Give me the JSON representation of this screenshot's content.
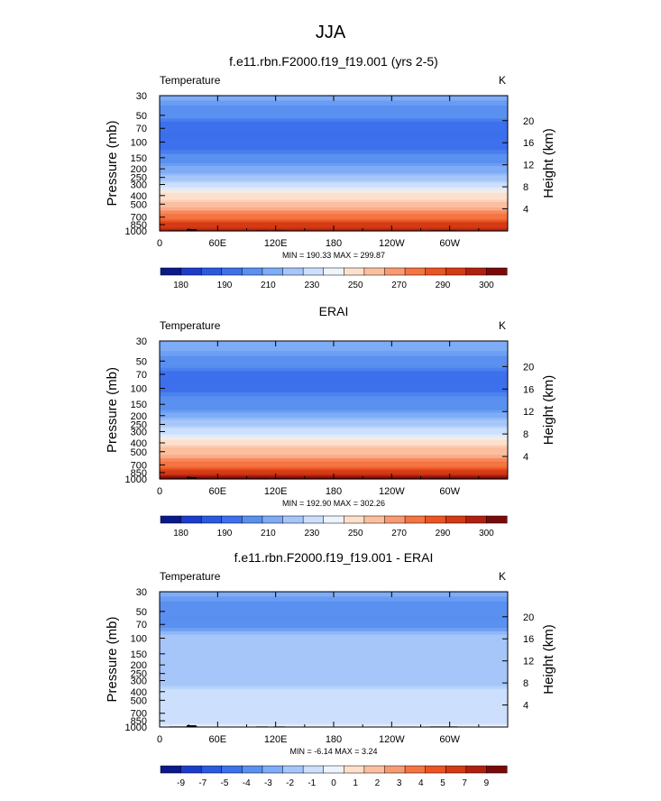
{
  "figure_title": "JJA",
  "chart_data": [
    {
      "type": "heatmap",
      "title": "f.e11.rbn.F2000.f19_f19.001 (yrs 2-5)",
      "variable_label": "Temperature",
      "units_label": "K",
      "ylabel": "Pressure (mb)",
      "ylabel_right": "Height (km)",
      "x_ticks": [
        "0",
        "60E",
        "120E",
        "180",
        "120W",
        "60W"
      ],
      "x_tick_values": [
        0,
        60,
        120,
        180,
        240,
        300
      ],
      "xlim": [
        0,
        360
      ],
      "pressure_ticks": [
        "30",
        "50",
        "70",
        "100",
        "150",
        "200",
        "250",
        "300",
        "400",
        "500",
        "700",
        "850",
        "1000"
      ],
      "pressure_tick_values": [
        30,
        50,
        70,
        100,
        150,
        200,
        250,
        300,
        400,
        500,
        700,
        850,
        1000
      ],
      "height_ticks": [
        "20",
        "16",
        "12",
        "8",
        "4"
      ],
      "height_tick_values": [
        20,
        16,
        12,
        8,
        4
      ],
      "ylim_mb": [
        1000,
        30
      ],
      "stats": "MIN = 190.33  MAX = 299.87",
      "min": 190.33,
      "max": 299.87,
      "colorbar_labels": [
        "180",
        "190",
        "210",
        "230",
        "250",
        "270",
        "290",
        "300"
      ],
      "colorbar_colors": [
        "#0a1a8c",
        "#1c3ccc",
        "#2a5ae0",
        "#3c70ec",
        "#5a90f0",
        "#7eacf6",
        "#a6c6fa",
        "#ccdffc",
        "#eef4fc",
        "#fde0cc",
        "#fbbfa0",
        "#f89a72",
        "#f47442",
        "#ec5422",
        "#d43a14",
        "#b02010",
        "#7a0a0a"
      ],
      "profile_levels_mb": [
        30,
        50,
        70,
        100,
        150,
        200,
        250,
        300,
        400,
        500,
        700,
        850,
        1000
      ],
      "profile_values_K": [
        222,
        210,
        205,
        204,
        210,
        220,
        226,
        234,
        247,
        258,
        273,
        284,
        296
      ]
    },
    {
      "type": "heatmap",
      "title": "ERAI",
      "variable_label": "Temperature",
      "units_label": "K",
      "ylabel": "Pressure (mb)",
      "ylabel_right": "Height (km)",
      "x_ticks": [
        "0",
        "60E",
        "120E",
        "180",
        "120W",
        "60W"
      ],
      "x_tick_values": [
        0,
        60,
        120,
        180,
        240,
        300
      ],
      "xlim": [
        0,
        360
      ],
      "pressure_ticks": [
        "30",
        "50",
        "70",
        "100",
        "150",
        "200",
        "250",
        "300",
        "400",
        "500",
        "700",
        "850",
        "1000"
      ],
      "pressure_tick_values": [
        30,
        50,
        70,
        100,
        150,
        200,
        250,
        300,
        400,
        500,
        700,
        850,
        1000
      ],
      "height_ticks": [
        "20",
        "16",
        "12",
        "8",
        "4"
      ],
      "height_tick_values": [
        20,
        16,
        12,
        8,
        4
      ],
      "ylim_mb": [
        1000,
        30
      ],
      "stats": "MIN = 192.90  MAX = 302.26",
      "min": 192.9,
      "max": 302.26,
      "colorbar_labels": [
        "180",
        "190",
        "210",
        "230",
        "250",
        "270",
        "290",
        "300"
      ],
      "colorbar_colors": [
        "#0a1a8c",
        "#1c3ccc",
        "#2a5ae0",
        "#3c70ec",
        "#5a90f0",
        "#7eacf6",
        "#a6c6fa",
        "#ccdffc",
        "#eef4fc",
        "#fde0cc",
        "#fbbfa0",
        "#f89a72",
        "#f47442",
        "#ec5422",
        "#d43a14",
        "#b02010",
        "#7a0a0a"
      ],
      "profile_levels_mb": [
        30,
        50,
        70,
        100,
        150,
        200,
        250,
        300,
        400,
        500,
        700,
        850,
        1000
      ],
      "profile_values_K": [
        224,
        214,
        209,
        207,
        212,
        221,
        228,
        236,
        249,
        260,
        275,
        286,
        298
      ]
    },
    {
      "type": "heatmap",
      "title": "f.e11.rbn.F2000.f19_f19.001 - ERAI",
      "variable_label": "Temperature",
      "units_label": "K",
      "ylabel": "Pressure (mb)",
      "ylabel_right": "Height (km)",
      "x_ticks": [
        "0",
        "60E",
        "120E",
        "180",
        "120W",
        "60W"
      ],
      "x_tick_values": [
        0,
        60,
        120,
        180,
        240,
        300
      ],
      "xlim": [
        0,
        360
      ],
      "pressure_ticks": [
        "30",
        "50",
        "70",
        "100",
        "150",
        "200",
        "250",
        "300",
        "400",
        "500",
        "700",
        "850",
        "1000"
      ],
      "pressure_tick_values": [
        30,
        50,
        70,
        100,
        150,
        200,
        250,
        300,
        400,
        500,
        700,
        850,
        1000
      ],
      "height_ticks": [
        "20",
        "16",
        "12",
        "8",
        "4"
      ],
      "height_tick_values": [
        20,
        16,
        12,
        8,
        4
      ],
      "ylim_mb": [
        1000,
        30
      ],
      "stats": "MIN = -6.14  MAX =  3.24",
      "min": -6.14,
      "max": 3.24,
      "colorbar_labels": [
        "-9",
        "-7",
        "-5",
        "-4",
        "-3",
        "-2",
        "-1",
        "0",
        "1",
        "2",
        "3",
        "4",
        "5",
        "7",
        "9"
      ],
      "colorbar_colors": [
        "#0a1a8c",
        "#1c3ccc",
        "#2a5ae0",
        "#3c70ec",
        "#5a90f0",
        "#7eacf6",
        "#a6c6fa",
        "#ccdffc",
        "#eef4fc",
        "#fde0cc",
        "#fbbfa0",
        "#f89a72",
        "#f47442",
        "#ec5422",
        "#d43a14",
        "#b02010",
        "#7a0a0a"
      ],
      "profile_levels_mb": [
        30,
        50,
        70,
        100,
        150,
        200,
        250,
        300,
        400,
        500,
        700,
        850,
        1000
      ],
      "profile_values_K": [
        -3.5,
        -4.5,
        -4.2,
        -2.5,
        -2.2,
        -2,
        -2.1,
        -1.8,
        -1.4,
        -1.3,
        -1.1,
        -0.9,
        -0.2
      ]
    }
  ]
}
